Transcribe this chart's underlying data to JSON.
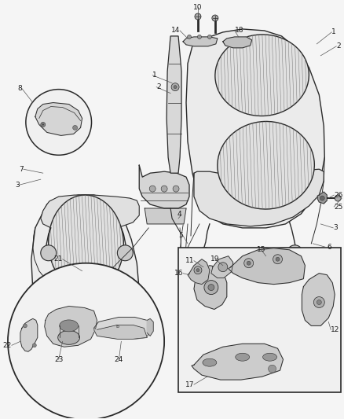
{
  "background_color": "#f5f5f5",
  "line_color": "#2a2a2a",
  "label_color": "#1a1a1a",
  "font_size": 6.5,
  "fig_width": 4.38,
  "fig_height": 5.33,
  "dpi": 100
}
